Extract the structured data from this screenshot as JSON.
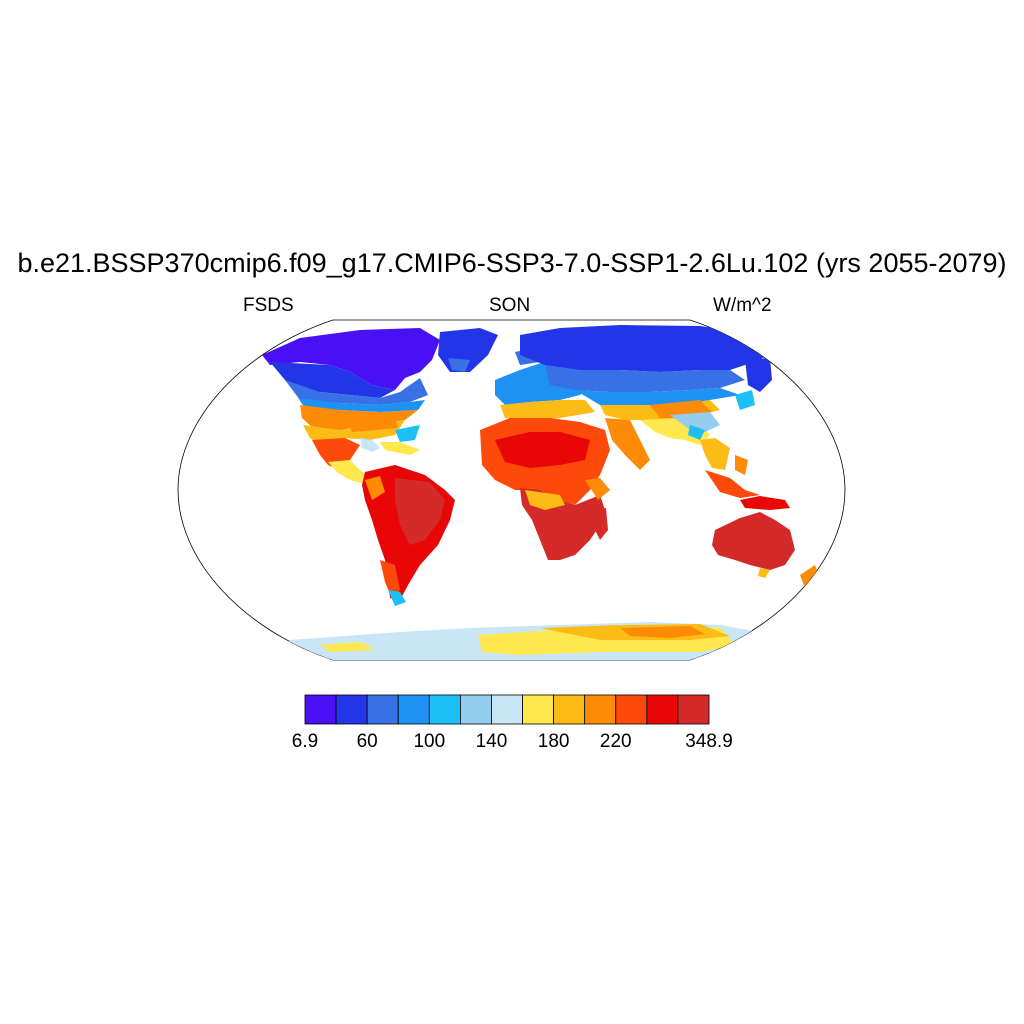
{
  "title": "b.e21.BSSP370cmip6.f09_g17.CMIP6-SSP3-7.0-SSP1-2.6Lu.102 (yrs 2055-2079)",
  "left_string": "FSDS",
  "center_string": "SON",
  "right_string": "W/m^2",
  "colorbar": {
    "colors": [
      "#4a10f5",
      "#2236e8",
      "#3871e6",
      "#1e91f5",
      "#1cc0f7",
      "#94cdf0",
      "#c8e6f5",
      "#ffe84e",
      "#fcbb15",
      "#fd8b05",
      "#fd4a0a",
      "#e90606",
      "#d42a2a"
    ],
    "labels": [
      {
        "text": "6.9",
        "boundary": 0
      },
      {
        "text": "60",
        "boundary": 2
      },
      {
        "text": "100",
        "boundary": 4
      },
      {
        "text": "140",
        "boundary": 6
      },
      {
        "text": "180",
        "boundary": 8
      },
      {
        "text": "220",
        "boundary": 10
      },
      {
        "text": "348.9",
        "boundary": 13
      }
    ]
  }
}
